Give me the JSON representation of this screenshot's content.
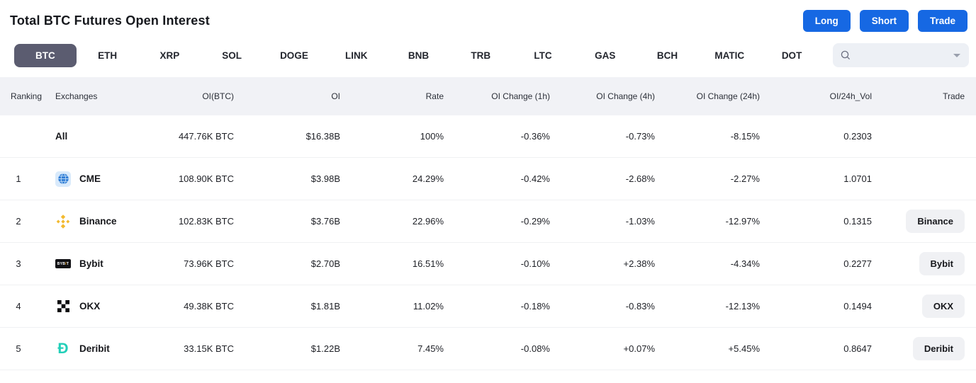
{
  "header": {
    "title": "Total BTC Futures Open Interest",
    "buttons": [
      {
        "label": "Long"
      },
      {
        "label": "Short"
      },
      {
        "label": "Trade"
      }
    ]
  },
  "tabs": {
    "items": [
      "BTC",
      "ETH",
      "XRP",
      "SOL",
      "DOGE",
      "LINK",
      "BNB",
      "TRB",
      "LTC",
      "GAS",
      "BCH",
      "MATIC",
      "DOT"
    ],
    "selected": "BTC",
    "search_value": ""
  },
  "table": {
    "columns": [
      "Ranking",
      "Exchanges",
      "OI(BTC)",
      "OI",
      "Rate",
      "OI Change (1h)",
      "OI Change (4h)",
      "OI Change (24h)",
      "OI/24h_Vol",
      "Trade"
    ],
    "rows": [
      {
        "ranking": "",
        "exchange": "All",
        "icon": "",
        "oi_btc": "447.76K BTC",
        "oi": "$16.38B",
        "rate": "100%",
        "change_1h": "-0.36%",
        "change_4h": "-0.73%",
        "change_24h": "-8.15%",
        "oi_24h_vol": "0.2303",
        "trade": ""
      },
      {
        "ranking": "1",
        "exchange": "CME",
        "icon": "cme",
        "oi_btc": "108.90K BTC",
        "oi": "$3.98B",
        "rate": "24.29%",
        "change_1h": "-0.42%",
        "change_4h": "-2.68%",
        "change_24h": "-2.27%",
        "oi_24h_vol": "1.0701",
        "trade": ""
      },
      {
        "ranking": "2",
        "exchange": "Binance",
        "icon": "binance",
        "oi_btc": "102.83K BTC",
        "oi": "$3.76B",
        "rate": "22.96%",
        "change_1h": "-0.29%",
        "change_4h": "-1.03%",
        "change_24h": "-12.97%",
        "oi_24h_vol": "0.1315",
        "trade": "Binance"
      },
      {
        "ranking": "3",
        "exchange": "Bybit",
        "icon": "bybit",
        "oi_btc": "73.96K BTC",
        "oi": "$2.70B",
        "rate": "16.51%",
        "change_1h": "-0.10%",
        "change_4h": "+2.38%",
        "change_24h": "-4.34%",
        "oi_24h_vol": "0.2277",
        "trade": "Bybit"
      },
      {
        "ranking": "4",
        "exchange": "OKX",
        "icon": "okx",
        "oi_btc": "49.38K BTC",
        "oi": "$1.81B",
        "rate": "11.02%",
        "change_1h": "-0.18%",
        "change_4h": "-0.83%",
        "change_24h": "-12.13%",
        "oi_24h_vol": "0.1494",
        "trade": "OKX"
      },
      {
        "ranking": "5",
        "exchange": "Deribit",
        "icon": "deribit",
        "oi_btc": "33.15K BTC",
        "oi": "$1.22B",
        "rate": "7.45%",
        "change_1h": "-0.08%",
        "change_4h": "+0.07%",
        "change_24h": "+5.45%",
        "oi_24h_vol": "0.8647",
        "trade": "Deribit"
      }
    ]
  },
  "colors": {
    "accent_blue": "#1668e3",
    "negative_red": "#f6465d",
    "positive_green": "#0ebd8c",
    "selected_tab_bg": "#5b5c70",
    "binance_gold": "#f3ba2f",
    "deribit_teal": "#23cfb9",
    "cme_blue": "#2e7cd6",
    "bybit_accent": "#f7a600"
  }
}
